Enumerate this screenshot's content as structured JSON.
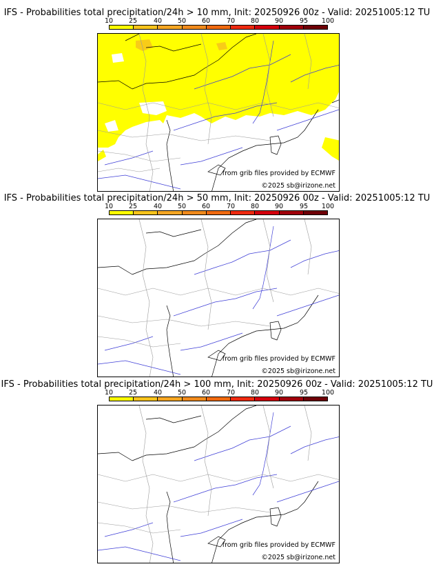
{
  "panels": [
    {
      "title": "IFS - Probabilities total precipitation/24h > 10 mm, Init: 20250926 00z - Valid: 20251005:12 TU",
      "credit_source": "from grib files provided by ECMWF",
      "credit_copy": "©2025 sb@irizone.net",
      "probability_field": "widespread"
    },
    {
      "title": "IFS - Probabilities total precipitation/24h > 50 mm, Init: 20250926 00z - Valid: 20251005:12 TU",
      "credit_source": "from grib files provided by ECMWF",
      "credit_copy": "©2025 sb@irizone.net",
      "probability_field": "none"
    },
    {
      "title": "IFS - Probabilities total precipitation/24h > 100 mm, Init: 20250926 00z - Valid: 20251005:12 TU",
      "credit_source": "from grib files provided by ECMWF",
      "credit_copy": "©2025 sb@irizone.net",
      "probability_field": "none"
    }
  ],
  "colorbar": {
    "ticks": [
      "10",
      "25",
      "40",
      "50",
      "60",
      "70",
      "80",
      "90",
      "95",
      "100"
    ],
    "colors": [
      "#ffff00",
      "#f7c31c",
      "#f5a623",
      "#f08a1c",
      "#f06a10",
      "#ee2a10",
      "#d4000c",
      "#a0000a",
      "#6e0006"
    ]
  }
}
